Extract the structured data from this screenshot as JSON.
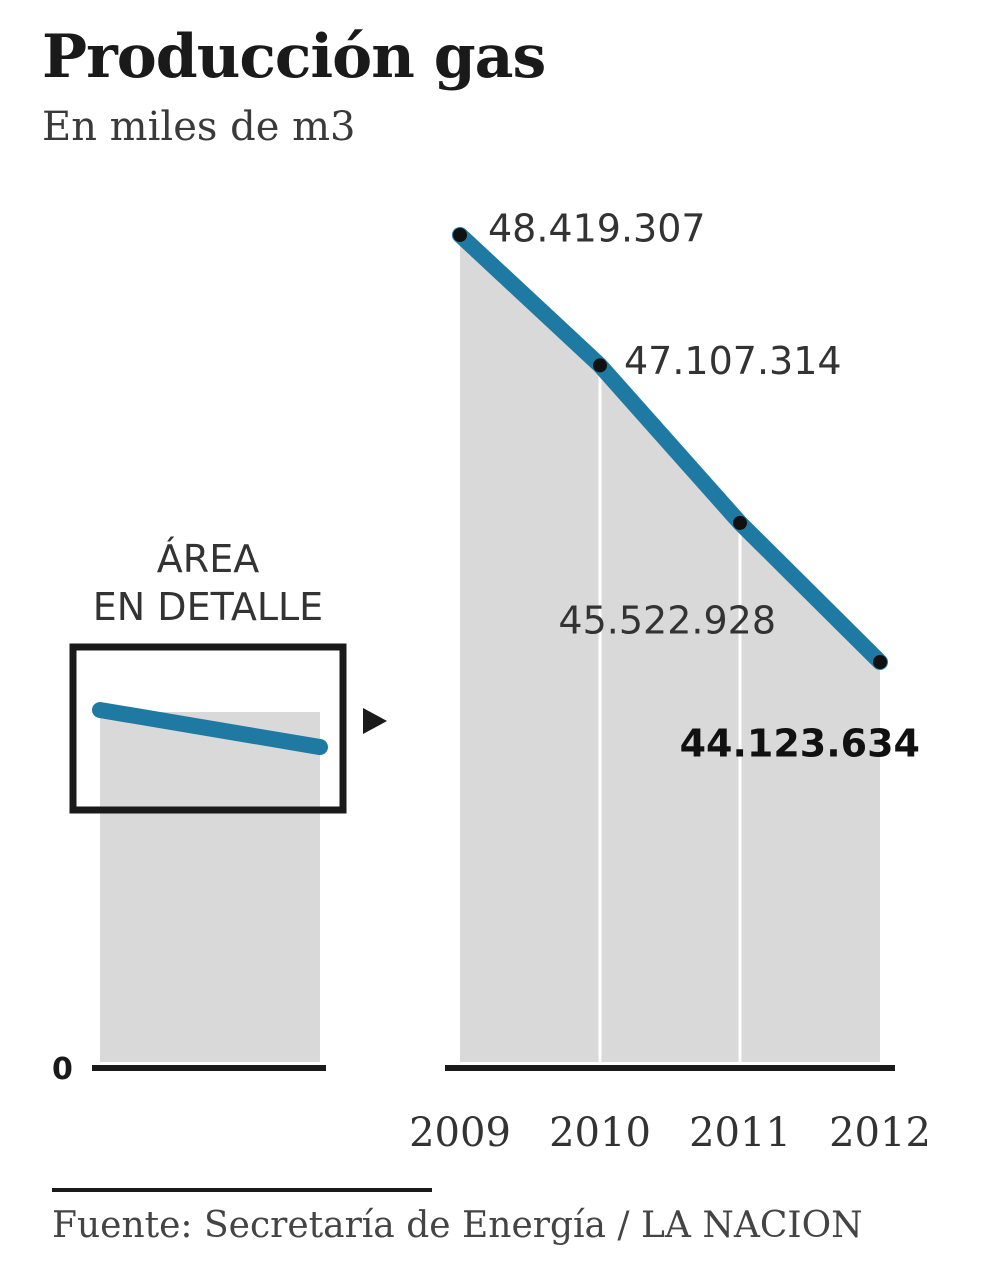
{
  "title": "Producción gas",
  "subtitle": "En miles de m3",
  "inset": {
    "label_line1": "ÁREA",
    "label_line2": "EN DETALLE",
    "zero_label": "0"
  },
  "source": "Fuente: Secretaría de Energía / LA NACION",
  "colors": {
    "line": "#1f7aa3",
    "area": "#d9d9d9",
    "axis": "#1a1a1a",
    "text": "#333333"
  },
  "chart_data": {
    "type": "area",
    "title": "Producción gas",
    "subtitle": "En miles de m3",
    "categories": [
      "2009",
      "2010",
      "2011",
      "2012"
    ],
    "series": [
      {
        "values": [
          48419307,
          47107314,
          45522928,
          44123634
        ],
        "labels": [
          "48.419.307",
          "47.107.314",
          "45.522.928",
          "44.123.634"
        ]
      }
    ],
    "emphasized_label_index": 3,
    "ylim_detail": [
      44123634,
      48419307
    ],
    "inset_ylim": [
      0,
      48419307
    ],
    "grid": false,
    "legend": "none"
  }
}
